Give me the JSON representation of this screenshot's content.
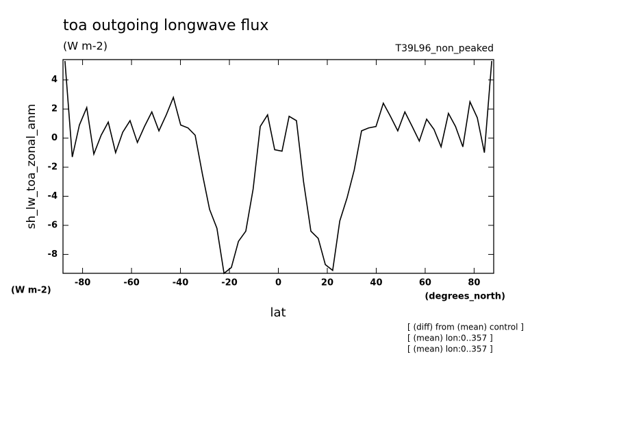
{
  "chart_data": {
    "type": "line",
    "title": "toa outgoing longwave flux",
    "subtitle": "(W m-2)",
    "dataset": "T39L96_non_peaked",
    "y_label": "sh_lw_toa_zonal_anm",
    "y_units": "(W m-2)",
    "x_label": "lat",
    "x_units": "(degrees_north)",
    "notes": [
      "[ (diff) from (mean) control ]",
      "[ (mean) lon:0..357 ]",
      "[ (mean) lon:0..357 ]"
    ],
    "color": "#000000",
    "x": [
      -87.2,
      -84.2,
      -81.3,
      -78.3,
      -75.4,
      -72.4,
      -69.5,
      -66.5,
      -63.6,
      -60.6,
      -57.6,
      -54.7,
      -51.7,
      -48.8,
      -45.8,
      -42.9,
      -39.9,
      -36.9,
      -34.0,
      -31.0,
      -28.1,
      -25.1,
      -22.2,
      -19.2,
      -16.3,
      -13.3,
      -10.3,
      -7.4,
      -4.4,
      -1.5,
      1.5,
      4.4,
      7.4,
      10.3,
      13.3,
      16.3,
      19.2,
      22.2,
      25.1,
      28.1,
      31.0,
      34.0,
      36.9,
      39.9,
      42.9,
      45.8,
      48.8,
      51.7,
      54.7,
      57.6,
      60.6,
      63.6,
      66.5,
      69.5,
      72.4,
      75.4,
      78.3,
      81.3,
      84.2,
      87.2
    ],
    "values": [
      5.3,
      -1.3,
      0.9,
      2.1,
      -1.1,
      0.2,
      1.1,
      -1.0,
      0.4,
      1.2,
      -0.3,
      0.8,
      1.8,
      0.5,
      1.6,
      2.8,
      0.9,
      0.7,
      0.2,
      -2.5,
      -4.9,
      -6.2,
      -9.3,
      -8.9,
      -7.1,
      -6.4,
      -3.5,
      0.8,
      1.6,
      -0.8,
      -0.9,
      1.5,
      1.2,
      -3.0,
      -6.4,
      -6.9,
      -8.7,
      -9.1,
      -5.7,
      -4.1,
      -2.2,
      0.5,
      0.7,
      0.8,
      2.4,
      1.5,
      0.5,
      1.8,
      0.8,
      -0.2,
      1.3,
      0.6,
      -0.6,
      1.7,
      0.8,
      -0.6,
      2.5,
      1.4,
      -1.0,
      5.3
    ],
    "xlim": [
      -88,
      88
    ],
    "ylim": [
      -9.3,
      5.4
    ],
    "xticks": [
      -80,
      -60,
      -40,
      -20,
      0,
      20,
      40,
      60,
      80
    ],
    "yticks": [
      -8,
      -6,
      -4,
      -2,
      0,
      2,
      4
    ]
  }
}
